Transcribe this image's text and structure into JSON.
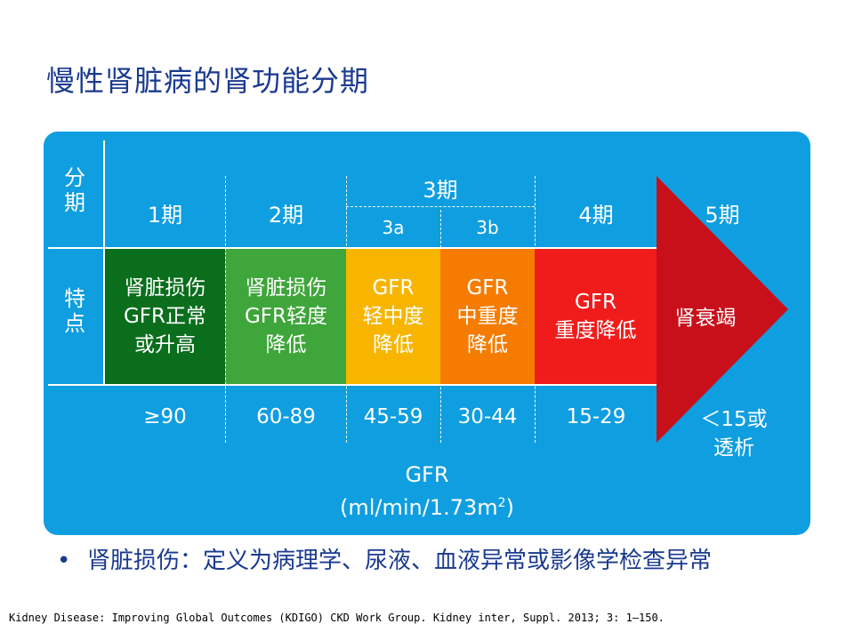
{
  "title": "慢性肾脏病的肾功能分期",
  "header": {
    "row1_label": [
      "分",
      "期"
    ],
    "row2_label": [
      "特",
      "点"
    ]
  },
  "stages": [
    {
      "label": "1期",
      "desc": [
        "肾脏损伤",
        "GFR正常",
        "或升高"
      ],
      "gfr": "≥90",
      "color": "#0a6e1c"
    },
    {
      "label": "2期",
      "desc": [
        "肾脏损伤",
        "GFR轻度",
        "降低"
      ],
      "gfr": "60-89",
      "color": "#3ea63a"
    },
    {
      "label": "3期",
      "sub": [
        "3a",
        "3b"
      ]
    },
    {
      "label": "3a",
      "desc": [
        "GFR",
        "轻中度",
        "降低"
      ],
      "gfr": "45-59",
      "color": "#f7b500"
    },
    {
      "label": "3b",
      "desc": [
        "GFR",
        "中重度",
        "降低"
      ],
      "gfr": "30-44",
      "color": "#f57c00"
    },
    {
      "label": "4期",
      "desc": [
        "GFR",
        "重度降低"
      ],
      "gfr": "15-29",
      "color": "#f01c1c"
    },
    {
      "label": "5期",
      "desc": [
        "肾衰竭"
      ],
      "gfr": [
        "＜15或",
        "透析"
      ],
      "color": "#c8101b"
    }
  ],
  "gfr_axis": {
    "line1": "GFR",
    "line2_prefix": "(ml/min/1.73m",
    "superscript": "2",
    "line2_suffix": ")"
  },
  "bullet": {
    "dot": "•",
    "text": "肾脏损伤：定义为病理学、尿液、血液异常或影像学检查异常"
  },
  "reference": "Kidney Disease: Improving Global Outcomes (KDIGO) CKD Work Group. Kidney inter, Suppl. 2013; 3: 1–150."
}
